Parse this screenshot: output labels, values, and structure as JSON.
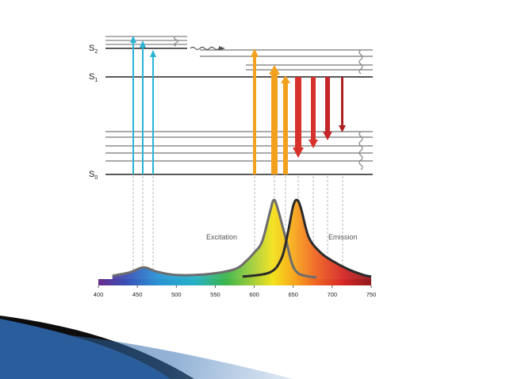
{
  "diagram": {
    "levels": {
      "s2": {
        "label": "S",
        "sub": "2"
      },
      "s1": {
        "label": "S",
        "sub": "1"
      },
      "s0": {
        "label": "S",
        "sub": "0"
      }
    },
    "spectrum": {
      "excitation_label": "Excitation",
      "emission_label": "Emission"
    }
  },
  "chart_data": {
    "type": "line",
    "xlim": [
      400,
      750
    ],
    "x_ticks": [
      400,
      450,
      500,
      550,
      600,
      650,
      700,
      750
    ],
    "x_tick_labels": [
      "400",
      "450",
      "500",
      "550",
      "600",
      "650",
      "700",
      "750"
    ],
    "grid": false,
    "series": [
      {
        "name": "Excitation",
        "color": "#6d6d6d",
        "x": [
          418,
          440,
          458,
          475,
          500,
          540,
          575,
          590,
          600,
          610,
          620,
          625,
          630,
          640,
          648,
          655,
          665,
          680
        ],
        "y": [
          0.04,
          0.08,
          0.14,
          0.09,
          0.05,
          0.06,
          0.12,
          0.22,
          0.32,
          0.45,
          0.8,
          0.95,
          0.85,
          0.5,
          0.2,
          0.08,
          0.04,
          0.02
        ]
      },
      {
        "name": "Emission",
        "color": "#2b2b2b",
        "x": [
          585,
          620,
          635,
          643,
          650,
          655,
          660,
          670,
          685,
          700,
          720,
          740,
          750
        ],
        "y": [
          0.03,
          0.08,
          0.25,
          0.55,
          0.88,
          0.95,
          0.85,
          0.5,
          0.32,
          0.22,
          0.12,
          0.05,
          0.03
        ]
      }
    ]
  },
  "colors": {
    "excitation_arrow": "#2bb3d6",
    "absorption_orange": "#f2a11f",
    "emission_red": "#d6312b",
    "dark_red": "#b01f22",
    "levels": "#555555"
  },
  "icons": [
    "vibrational-relaxation-squiggle-icon",
    "intersystem-wavy-arrow-icon"
  ]
}
